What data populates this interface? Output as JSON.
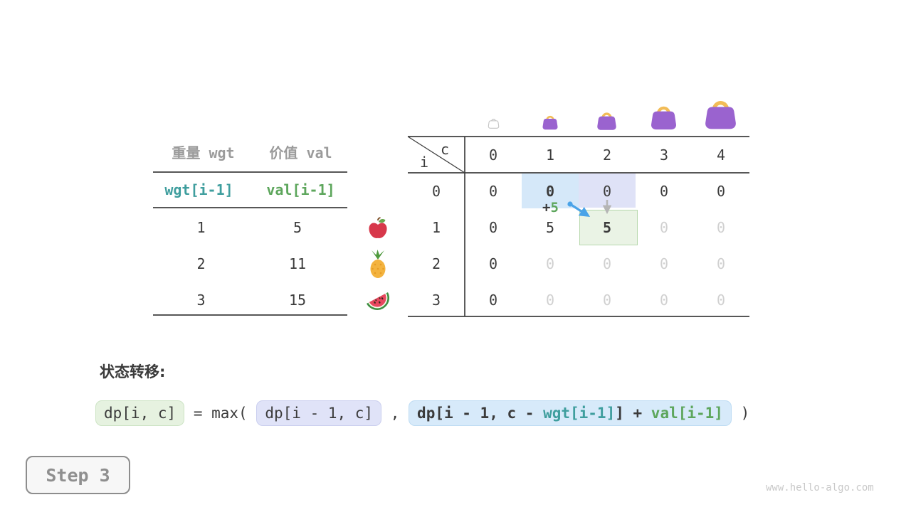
{
  "left_table": {
    "headers": [
      "重量 wgt",
      "价值 val"
    ],
    "subheaders": [
      "wgt[i-1]",
      "val[i-1]"
    ],
    "rows": [
      {
        "wgt": "1",
        "val": "5",
        "icon": "apple-icon"
      },
      {
        "wgt": "2",
        "val": "11",
        "icon": "pineapple-icon"
      },
      {
        "wgt": "3",
        "val": "15",
        "icon": "watermelon-icon"
      }
    ]
  },
  "dp_table": {
    "corner": {
      "col_label": "c",
      "row_label": "i"
    },
    "col_headers": [
      "0",
      "1",
      "2",
      "3",
      "4"
    ],
    "row_headers": [
      "0",
      "1",
      "2",
      "3"
    ],
    "capacity_icons": [
      "bag-tiny-outline-icon",
      "bag-small-icon",
      "bag-medium-icon",
      "bag-large-icon",
      "bag-xlarge-icon"
    ],
    "cells": [
      [
        {
          "v": "0"
        },
        {
          "v": "0",
          "bold": true
        },
        {
          "v": "0"
        },
        {
          "v": "0"
        },
        {
          "v": "0"
        }
      ],
      [
        {
          "v": "0"
        },
        {
          "v": "5"
        },
        {
          "v": "5",
          "bold": true
        },
        {
          "v": "0",
          "gray": true
        },
        {
          "v": "0",
          "gray": true
        }
      ],
      [
        {
          "v": "0"
        },
        {
          "v": "0",
          "gray": true
        },
        {
          "v": "0",
          "gray": true
        },
        {
          "v": "0",
          "gray": true
        },
        {
          "v": "0",
          "gray": true
        }
      ],
      [
        {
          "v": "0"
        },
        {
          "v": "0",
          "gray": true
        },
        {
          "v": "0",
          "gray": true
        },
        {
          "v": "0",
          "gray": true
        },
        {
          "v": "0",
          "gray": true
        }
      ]
    ],
    "annotation": {
      "plus": "+",
      "value": "5"
    },
    "highlights": {
      "option_keep": {
        "row": 0,
        "col": 1,
        "color": "#d5e8f9"
      },
      "option_source": {
        "row": 0,
        "col": 2,
        "color": "#dfe2f7"
      },
      "target": {
        "row": 1,
        "col": 2,
        "color": "#eaf3e5"
      }
    }
  },
  "formula": {
    "label": "状态转移:",
    "result_chip": "dp[i, c]",
    "equals": "=",
    "max_open": "max(",
    "option1_chip": "dp[i - 1, c]",
    "comma": ",",
    "option2_prefix": "dp[i - 1, c - ",
    "option2_wgt": "wgt[i-1]",
    "option2_mid": "] + ",
    "option2_val": "val[i-1]",
    "close_paren": ")"
  },
  "step_button_label": "Step 3",
  "watermark": "www.hello-algo.com",
  "colors": {
    "text_dark": "#3b3b3b",
    "text_gray_header": "#9b9b9b",
    "text_pending": "#d0d0d0",
    "teal": "#3f9e9e",
    "green": "#5da65c",
    "highlight_blue": "#d5e8f9",
    "highlight_lavender": "#dfe2f7",
    "highlight_green": "#eaf3e5",
    "arrow_blue": "#4aa3e8",
    "arrow_gray": "#b5b5b5",
    "bag_purple": "#9a63cf",
    "bag_handle": "#f2bc57"
  }
}
